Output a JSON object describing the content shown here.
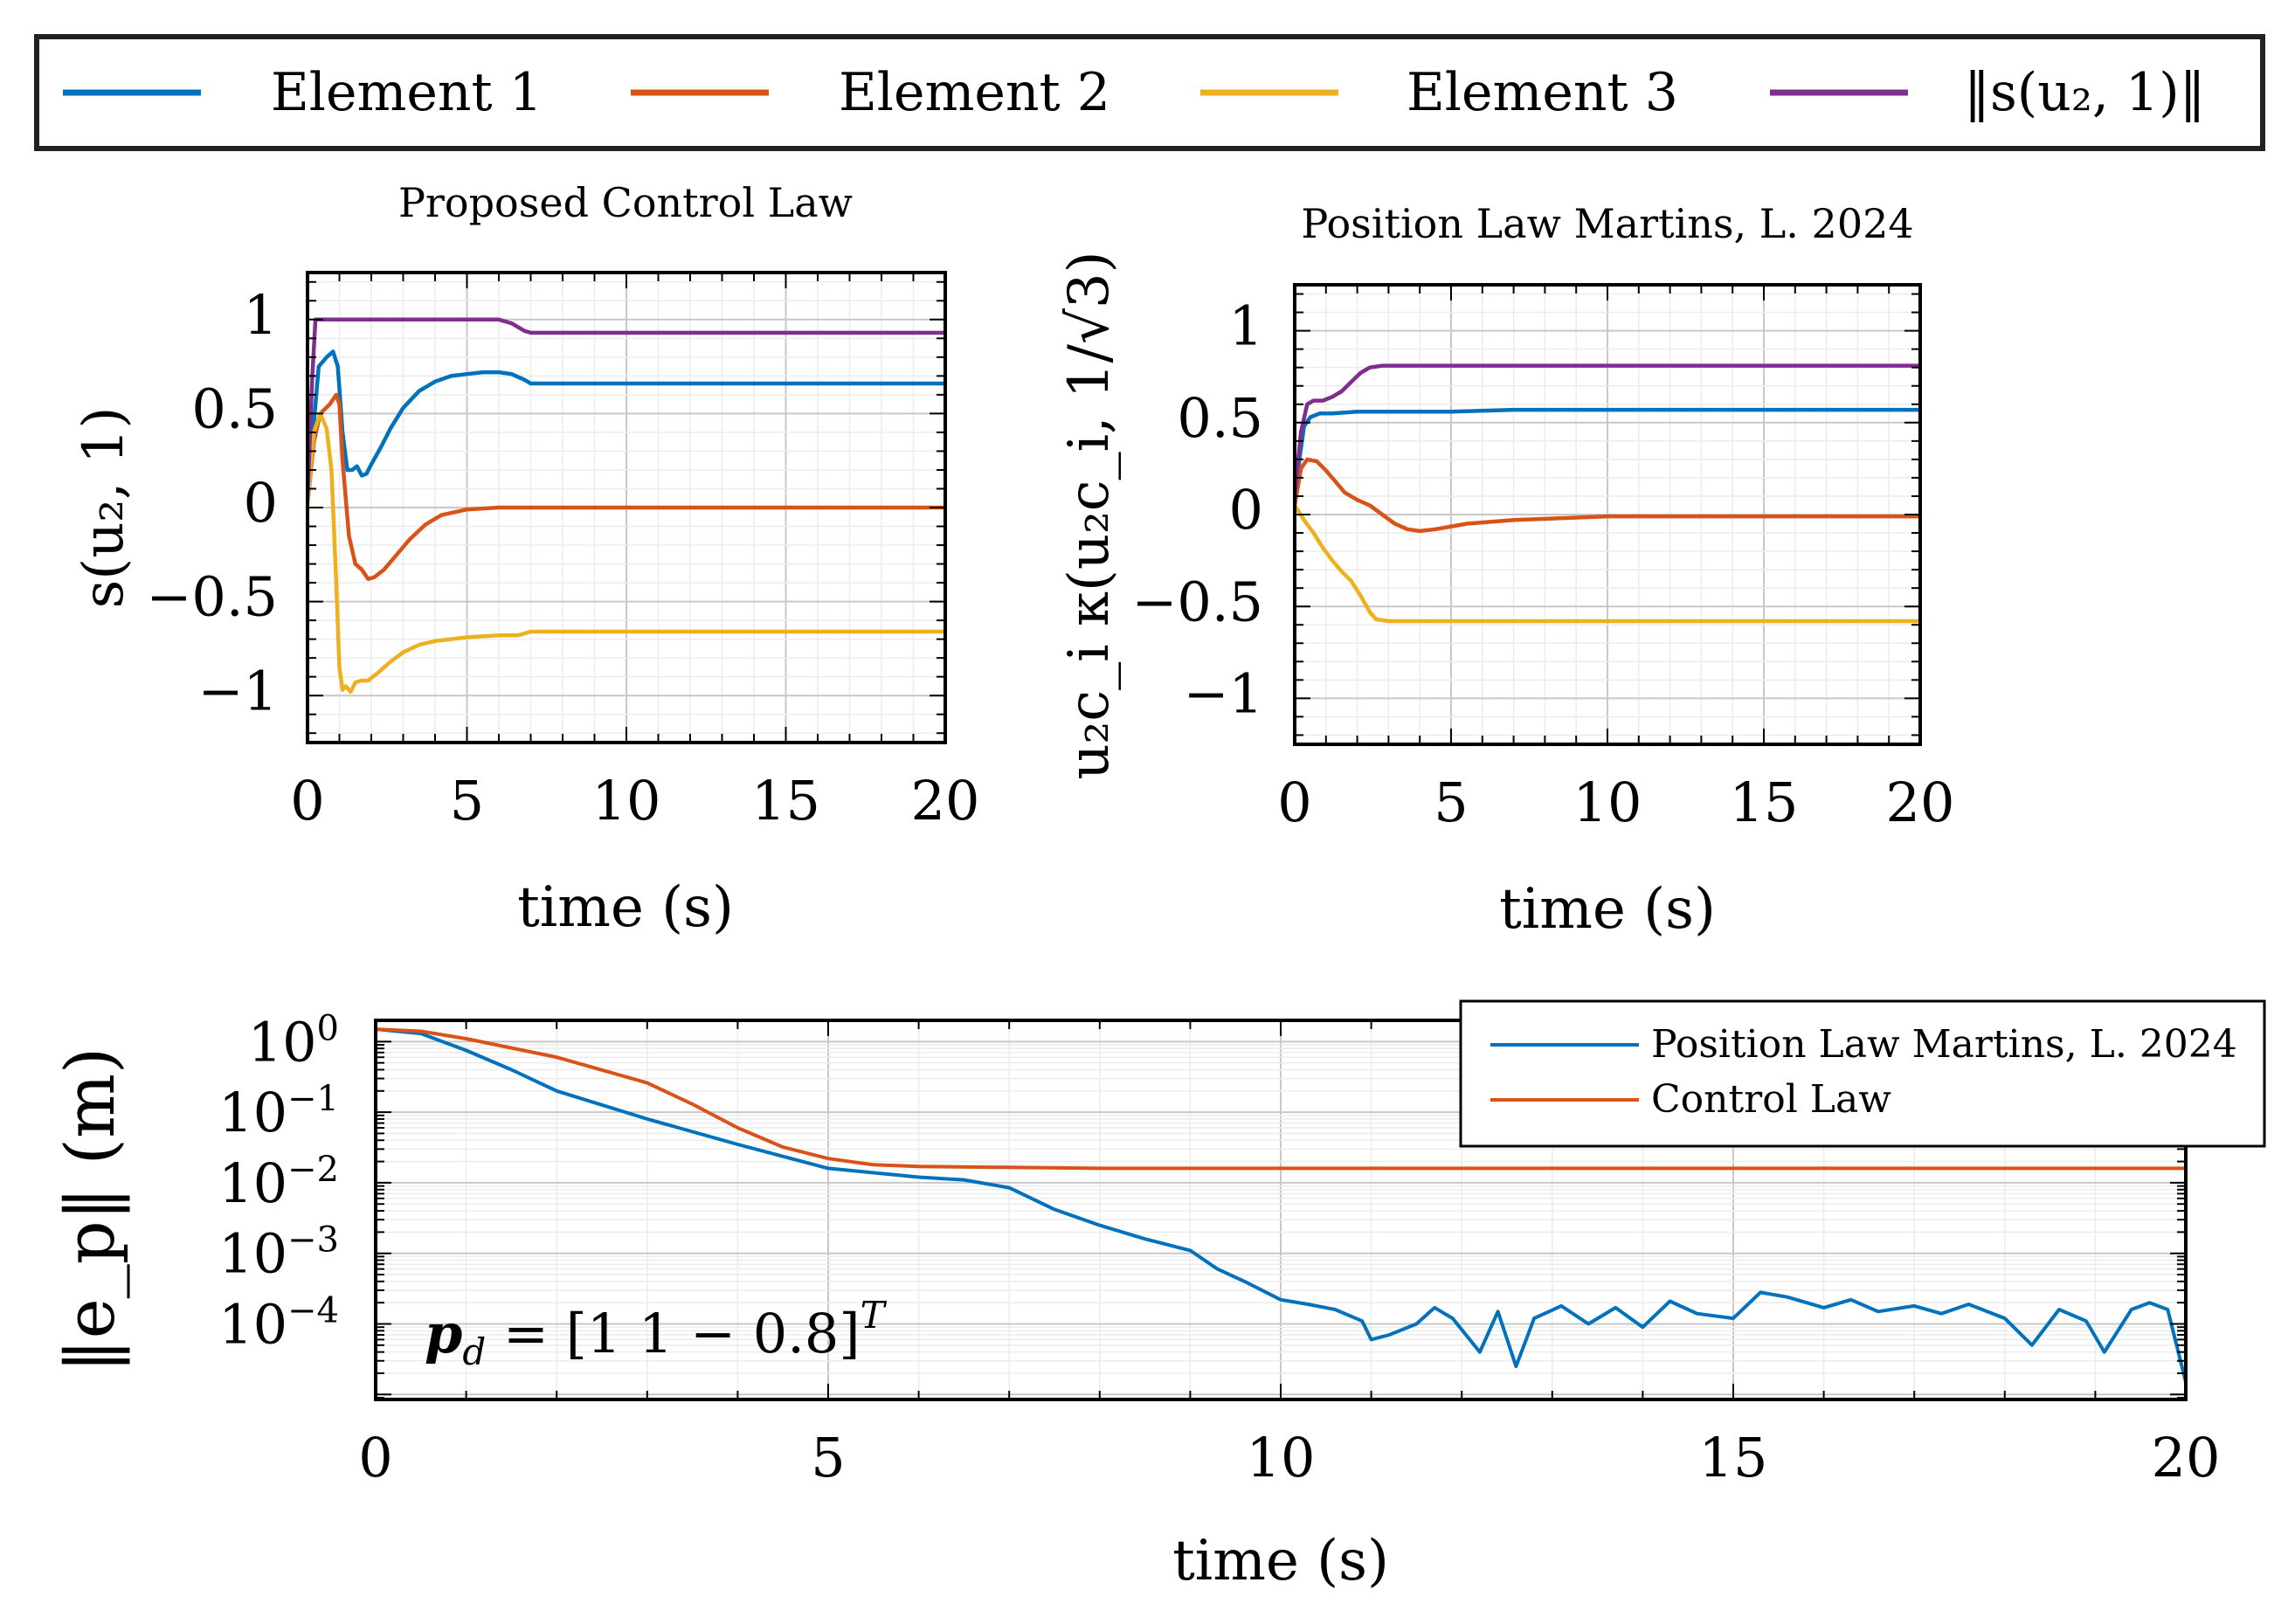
{
  "legend": {
    "entries": [
      {
        "label": "Element 1",
        "color": "#0072BD"
      },
      {
        "label": "Element 2",
        "color": "#D95319"
      },
      {
        "label": "Element 3",
        "color": "#EDB120"
      },
      {
        "label": "‖s(u₂, 1)‖",
        "color": "#7E2F8E"
      }
    ]
  },
  "chart_data": [
    {
      "id": "top-left",
      "type": "line",
      "title": "Proposed Control Law",
      "xlabel": "time (s)",
      "ylabel": "s(u₂, 1)",
      "xlim": [
        0,
        20
      ],
      "ylim": [
        -1.25,
        1.25
      ],
      "xticks": [
        0,
        5,
        10,
        15,
        20
      ],
      "yticks": [
        1,
        0.5,
        0,
        -0.5,
        -1
      ],
      "ytick_labels": [
        "1",
        "0.5",
        "0",
        "−0.5",
        "−1"
      ],
      "grid": true,
      "series": [
        {
          "name": "Element 1",
          "color": "#0072BD",
          "x": [
            0,
            0.2,
            0.35,
            0.6,
            0.8,
            0.95,
            1.1,
            1.25,
            1.4,
            1.55,
            1.7,
            1.85,
            2.0,
            2.3,
            2.6,
            3.0,
            3.5,
            4.0,
            4.5,
            5.0,
            5.5,
            6.0,
            6.4,
            6.8,
            7.0,
            8,
            10,
            12,
            14,
            16,
            18,
            20
          ],
          "y": [
            0.05,
            0.45,
            0.75,
            0.8,
            0.83,
            0.75,
            0.4,
            0.2,
            0.2,
            0.22,
            0.17,
            0.18,
            0.23,
            0.32,
            0.42,
            0.53,
            0.62,
            0.67,
            0.7,
            0.71,
            0.72,
            0.72,
            0.71,
            0.68,
            0.66,
            0.66,
            0.66,
            0.66,
            0.66,
            0.66,
            0.66,
            0.66
          ]
        },
        {
          "name": "Element 2",
          "color": "#D95319",
          "x": [
            0,
            0.2,
            0.4,
            0.7,
            0.9,
            1.0,
            1.1,
            1.3,
            1.5,
            1.7,
            1.9,
            2.1,
            2.4,
            2.8,
            3.2,
            3.7,
            4.2,
            5,
            6,
            8,
            10,
            12,
            14,
            16,
            18,
            20
          ],
          "y": [
            0.02,
            0.35,
            0.5,
            0.55,
            0.6,
            0.55,
            0.25,
            -0.15,
            -0.3,
            -0.33,
            -0.38,
            -0.37,
            -0.33,
            -0.25,
            -0.17,
            -0.09,
            -0.04,
            -0.01,
            0,
            0,
            0,
            0,
            0,
            0,
            0,
            0
          ],
          "_n": 0
        },
        {
          "name": "Element 3",
          "color": "#EDB120",
          "x": [
            0,
            0.2,
            0.4,
            0.6,
            0.75,
            0.9,
            1.0,
            1.1,
            1.2,
            1.35,
            1.5,
            1.7,
            1.9,
            2.2,
            2.6,
            3.0,
            3.5,
            4.0,
            5.0,
            6.0,
            6.6,
            7.0,
            8,
            10,
            12,
            14,
            16,
            18,
            20
          ],
          "y": [
            0.02,
            0.4,
            0.5,
            0.42,
            0.2,
            -0.4,
            -0.85,
            -0.97,
            -0.95,
            -0.98,
            -0.93,
            -0.92,
            -0.92,
            -0.88,
            -0.82,
            -0.77,
            -0.73,
            -0.71,
            -0.69,
            -0.68,
            -0.68,
            -0.66,
            -0.66,
            -0.66,
            -0.66,
            -0.66,
            -0.66,
            -0.66,
            -0.66
          ]
        },
        {
          "name": "‖s(u₂, 1)‖",
          "color": "#7E2F8E",
          "x": [
            0,
            0.15,
            0.25,
            0.35,
            1,
            3,
            5,
            6,
            6.4,
            6.8,
            7.0,
            8,
            10,
            12,
            14,
            16,
            18,
            20
          ],
          "y": [
            0.05,
            0.7,
            1.0,
            1.0,
            1.0,
            1.0,
            1.0,
            1.0,
            0.98,
            0.94,
            0.93,
            0.93,
            0.93,
            0.93,
            0.93,
            0.93,
            0.93,
            0.93
          ]
        }
      ]
    },
    {
      "id": "top-right",
      "type": "line",
      "title": "Position Law Martins, L. 2024",
      "xlabel": "time (s)",
      "ylabel": "u₂c_i κ(u₂c_i, 1/√3)",
      "xlim": [
        0,
        20
      ],
      "ylim": [
        -1.25,
        1.25
      ],
      "xticks": [
        0,
        5,
        10,
        15,
        20
      ],
      "yticks": [
        1,
        0.5,
        0,
        -0.5,
        -1
      ],
      "ytick_labels": [
        "1",
        "0.5",
        "0",
        "−0.5",
        "−1"
      ],
      "grid": true,
      "series": [
        {
          "name": "Element 1",
          "color": "#0072BD",
          "x": [
            0,
            0.15,
            0.3,
            0.5,
            0.8,
            1.2,
            2,
            3,
            5,
            7,
            10,
            15,
            20
          ],
          "y": [
            0.05,
            0.3,
            0.48,
            0.53,
            0.55,
            0.55,
            0.56,
            0.56,
            0.56,
            0.57,
            0.57,
            0.57,
            0.57
          ]
        },
        {
          "name": "Element 2",
          "color": "#D95319",
          "x": [
            0,
            0.2,
            0.4,
            0.7,
            1.0,
            1.3,
            1.6,
            2.0,
            2.4,
            2.8,
            3.2,
            3.6,
            4.0,
            4.5,
            5.5,
            7,
            10,
            15,
            20
          ],
          "y": [
            0.05,
            0.25,
            0.3,
            0.29,
            0.24,
            0.18,
            0.12,
            0.08,
            0.05,
            0.0,
            -0.05,
            -0.08,
            -0.09,
            -0.08,
            -0.05,
            -0.03,
            -0.01,
            -0.01,
            -0.01
          ]
        },
        {
          "name": "Element 3",
          "color": "#EDB120",
          "x": [
            0,
            0.3,
            0.6,
            0.9,
            1.2,
            1.5,
            1.8,
            2.1,
            2.4,
            2.6,
            3,
            5,
            7,
            10,
            15,
            20
          ],
          "y": [
            0.05,
            -0.03,
            -0.1,
            -0.18,
            -0.25,
            -0.31,
            -0.36,
            -0.44,
            -0.53,
            -0.57,
            -0.58,
            -0.58,
            -0.58,
            -0.58,
            -0.58,
            -0.58
          ]
        },
        {
          "name": "‖s(u₂, 1)‖",
          "color": "#7E2F8E",
          "x": [
            0,
            0.2,
            0.4,
            0.6,
            0.9,
            1.2,
            1.5,
            1.8,
            2.1,
            2.4,
            2.8,
            3.2,
            4,
            6,
            10,
            15,
            20
          ],
          "y": [
            0.1,
            0.45,
            0.6,
            0.62,
            0.62,
            0.64,
            0.67,
            0.72,
            0.77,
            0.8,
            0.81,
            0.81,
            0.81,
            0.81,
            0.81,
            0.81,
            0.81
          ]
        }
      ]
    },
    {
      "id": "bottom",
      "type": "line",
      "yscale": "log",
      "xlabel": "time (s)",
      "ylabel": "‖e_p‖ (m)",
      "xlim": [
        0,
        20
      ],
      "ylim": [
        8.5e-06,
        2.0
      ],
      "xticks": [
        0,
        5,
        10,
        15,
        20
      ],
      "yticks": [
        1,
        0.1,
        0.01,
        0.001,
        0.0001
      ],
      "ytick_labels": [
        {
          "base": "10",
          "exp": "0"
        },
        {
          "base": "10",
          "exp": "−1"
        },
        {
          "base": "10",
          "exp": "−2"
        },
        {
          "base": "10",
          "exp": "−3"
        },
        {
          "base": "10",
          "exp": "−4"
        }
      ],
      "grid": true,
      "annotation": {
        "lhs": "p",
        "sub": "d",
        "rhs": " = [1  1  − 0.8]",
        "sup": "T"
      },
      "series": [
        {
          "name": "Position Law Martins, L. 2024",
          "color": "#0072BD",
          "x": [
            0,
            0.5,
            1,
            1.5,
            2,
            3,
            4,
            5,
            6,
            6.5,
            7,
            7.5,
            8,
            8.5,
            9,
            9.3,
            9.6,
            10,
            10.3,
            10.6,
            10.9,
            11.0,
            11.2,
            11.5,
            11.7,
            11.9,
            12.2,
            12.4,
            12.6,
            12.8,
            13.1,
            13.4,
            13.7,
            14.0,
            14.3,
            14.6,
            15.0,
            15.3,
            15.6,
            16.0,
            16.3,
            16.6,
            17.0,
            17.3,
            17.6,
            18.0,
            18.3,
            18.6,
            18.9,
            19.1,
            19.4,
            19.6,
            19.8,
            20
          ],
          "y": [
            1.5,
            1.3,
            0.75,
            0.4,
            0.2,
            0.08,
            0.035,
            0.016,
            0.012,
            0.011,
            0.0085,
            0.0042,
            0.0025,
            0.0016,
            0.0011,
            0.0006,
            0.0004,
            0.00022,
            0.00019,
            0.00016,
            0.00011,
            6e-05,
            7e-05,
            0.0001,
            0.00017,
            0.00012,
            4e-05,
            0.00015,
            2.5e-05,
            0.00012,
            0.00018,
            0.0001,
            0.00017,
            9e-05,
            0.00021,
            0.00014,
            0.00012,
            0.00028,
            0.00024,
            0.00017,
            0.00022,
            0.00015,
            0.00018,
            0.00014,
            0.00019,
            0.00012,
            5e-05,
            0.00016,
            0.00011,
            4e-05,
            0.00016,
            0.0002,
            0.00016,
            1.5e-05
          ]
        },
        {
          "name": "Control Law",
          "color": "#D95319",
          "x": [
            0,
            0.5,
            1,
            2,
            3,
            3.5,
            4,
            4.5,
            5,
            5.5,
            6,
            7,
            8,
            9,
            10,
            12,
            15,
            20
          ],
          "y": [
            1.5,
            1.4,
            1.1,
            0.6,
            0.26,
            0.13,
            0.06,
            0.032,
            0.022,
            0.018,
            0.017,
            0.0165,
            0.016,
            0.016,
            0.016,
            0.016,
            0.016,
            0.016
          ]
        }
      ]
    }
  ]
}
